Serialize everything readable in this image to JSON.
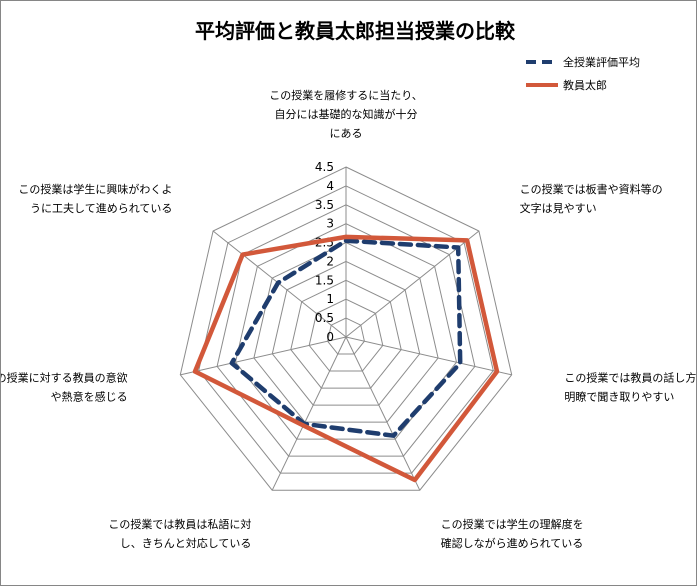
{
  "chart_data": {
    "type": "radar",
    "title": "平均評価と教員太郎担当授業の比較",
    "rlim": [
      0,
      4.5
    ],
    "ticks": [
      "0",
      "0.5",
      "1",
      "1.5",
      "2",
      "2.5",
      "3",
      "3.5",
      "4",
      "4.5"
    ],
    "categories": [
      [
        "この授業を履修するに当たり、",
        "自分には基礎的な知識が十分",
        "にある"
      ],
      [
        "この授業では板書や資料等の",
        "文字は見やすい"
      ],
      [
        "この授業では教員の話し方は",
        "明瞭で聞き取りやすい"
      ],
      [
        "この授業では学生の理解度を",
        "確認しながら進められている"
      ],
      [
        "この授業では教員は私語に対",
        "し、きちんと対応している"
      ],
      [
        "この授業に対する教員の意欲",
        "や熱意を感じる"
      ],
      [
        "この授業は学生に興味がわくよ",
        "うに工夫して進められている"
      ]
    ],
    "series": [
      {
        "name": "全授業評価平均",
        "values": [
          2.55,
          3.8,
          3.1,
          2.9,
          2.55,
          3.1,
          2.3
        ],
        "color": "#1F3D6E",
        "style": "dashed"
      },
      {
        "name": "教員太郎",
        "values": [
          2.65,
          4.1,
          4.1,
          4.2,
          2.6,
          4.1,
          3.5
        ],
        "color": "#D2583A",
        "style": "solid"
      }
    ],
    "legend": "top-right",
    "grid": true
  }
}
